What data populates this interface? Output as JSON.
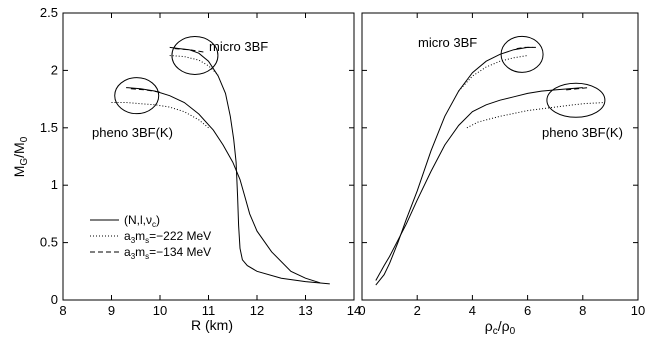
{
  "chart_data": [
    {
      "type": "line",
      "title": "",
      "xlabel": "R (km)",
      "ylabel": "M_G/M_0",
      "xlim": [
        8,
        14
      ],
      "ylim": [
        0,
        2.5
      ],
      "xticks": [
        "8",
        "9",
        "10",
        "11",
        "12",
        "13",
        "14"
      ],
      "yticks": [
        "0",
        "0.5",
        "1",
        "1.5",
        "2",
        "2.5"
      ],
      "grid": false,
      "legend": {
        "position": "lower-left",
        "entries": [
          {
            "label": "(N,l,ν_c)",
            "style": "solid"
          },
          {
            "label": "a_3m_s=−222 MeV",
            "style": "dotted"
          },
          {
            "label": "a_3m_s=−134 MeV",
            "style": "dashed"
          }
        ]
      },
      "annotations": [
        {
          "text": "micro 3BF",
          "ellipse_center": [
            10.72,
            2.13
          ]
        },
        {
          "text": "pheno 3BF(K)",
          "ellipse_center": [
            9.52,
            1.78
          ]
        }
      ],
      "series": [
        {
          "label": "micro 3BF",
          "style": "solid",
          "x": [
            10.2,
            10.4,
            10.6,
            10.8,
            11.0,
            11.2,
            11.35,
            11.45,
            11.52,
            11.57,
            11.6,
            11.62,
            11.65,
            11.7,
            11.8,
            12.0,
            12.5,
            13.0,
            13.5
          ],
          "y": [
            2.2,
            2.19,
            2.18,
            2.15,
            2.08,
            1.95,
            1.8,
            1.6,
            1.4,
            1.2,
            0.9,
            0.65,
            0.45,
            0.35,
            0.3,
            0.25,
            0.19,
            0.16,
            0.14
          ]
        },
        {
          "label": "micro 3BF",
          "style": "dashed",
          "x": [
            10.3,
            10.6,
            10.9
          ],
          "y": [
            2.19,
            2.18,
            2.16
          ]
        },
        {
          "label": "micro 3BF",
          "style": "dotted",
          "x": [
            10.2,
            10.5,
            10.8,
            11.0,
            11.2
          ],
          "y": [
            2.13,
            2.12,
            2.09,
            2.04,
            1.96
          ]
        },
        {
          "label": "pheno 3BF(K)",
          "style": "solid",
          "x": [
            9.3,
            9.6,
            9.9,
            10.2,
            10.5,
            10.8,
            11.1,
            11.3,
            11.5,
            11.65,
            11.75,
            11.85,
            12.0,
            12.3,
            12.7,
            13.0,
            13.3
          ],
          "y": [
            1.85,
            1.84,
            1.82,
            1.78,
            1.72,
            1.62,
            1.48,
            1.35,
            1.2,
            1.05,
            0.9,
            0.75,
            0.6,
            0.42,
            0.25,
            0.19,
            0.15
          ]
        },
        {
          "label": "pheno 3BF(K)",
          "style": "dashed",
          "x": [
            9.4,
            9.7,
            10.0
          ],
          "y": [
            1.84,
            1.83,
            1.81
          ]
        },
        {
          "label": "pheno 3BF(K)",
          "style": "dotted",
          "x": [
            9.0,
            9.3,
            9.6,
            9.9,
            10.2,
            10.5,
            10.8,
            11.0
          ],
          "y": [
            1.72,
            1.72,
            1.71,
            1.7,
            1.68,
            1.64,
            1.57,
            1.5
          ]
        }
      ]
    },
    {
      "type": "line",
      "title": "",
      "xlabel": "ρ_c/ρ_0",
      "ylabel": "",
      "xlim": [
        0,
        10
      ],
      "ylim": [
        0,
        2.5
      ],
      "xticks": [
        "0",
        "2",
        "4",
        "6",
        "8",
        "10"
      ],
      "yticks": [
        "0",
        "0.5",
        "1",
        "1.5",
        "2",
        "2.5"
      ],
      "grid": false,
      "annotations": [
        {
          "text": "micro 3BF",
          "ellipse_center": [
            5.8,
            2.14
          ]
        },
        {
          "text": "pheno 3BF(K)",
          "ellipse_center": [
            7.75,
            1.74
          ]
        }
      ],
      "series": [
        {
          "label": "micro 3BF",
          "style": "solid",
          "x": [
            0.5,
            0.8,
            1.0,
            1.3,
            1.6,
            2.0,
            2.5,
            3.0,
            3.5,
            4.0,
            4.5,
            5.0,
            5.5,
            6.0,
            6.3
          ],
          "y": [
            0.13,
            0.22,
            0.32,
            0.5,
            0.7,
            0.95,
            1.3,
            1.6,
            1.82,
            1.98,
            2.08,
            2.14,
            2.18,
            2.2,
            2.2
          ]
        },
        {
          "label": "micro 3BF",
          "style": "dashed",
          "x": [
            5.6,
            5.9,
            6.2
          ],
          "y": [
            2.19,
            2.2,
            2.2
          ]
        },
        {
          "label": "micro 3BF",
          "style": "dotted",
          "x": [
            3.5,
            4.0,
            4.5,
            5.0,
            5.5,
            6.0
          ],
          "y": [
            1.82,
            1.95,
            2.03,
            2.08,
            2.11,
            2.13
          ]
        },
        {
          "label": "pheno 3BF(K)",
          "style": "solid",
          "x": [
            0.5,
            0.8,
            1.0,
            1.3,
            1.6,
            2.0,
            2.5,
            3.0,
            3.5,
            4.0,
            4.5,
            5.0,
            5.5,
            6.0,
            6.5,
            7.0,
            7.5,
            8.0
          ],
          "y": [
            0.17,
            0.3,
            0.38,
            0.52,
            0.66,
            0.87,
            1.12,
            1.35,
            1.52,
            1.64,
            1.7,
            1.74,
            1.77,
            1.8,
            1.82,
            1.83,
            1.84,
            1.85
          ]
        },
        {
          "label": "pheno 3BF(K)",
          "style": "dashed",
          "x": [
            7.4,
            7.8,
            8.2
          ],
          "y": [
            1.83,
            1.84,
            1.85
          ]
        },
        {
          "label": "pheno 3BF(K)",
          "style": "dotted",
          "x": [
            3.8,
            4.2,
            5.0,
            6.0,
            7.0,
            8.0,
            8.8
          ],
          "y": [
            1.5,
            1.55,
            1.6,
            1.65,
            1.68,
            1.71,
            1.72
          ]
        }
      ]
    }
  ]
}
